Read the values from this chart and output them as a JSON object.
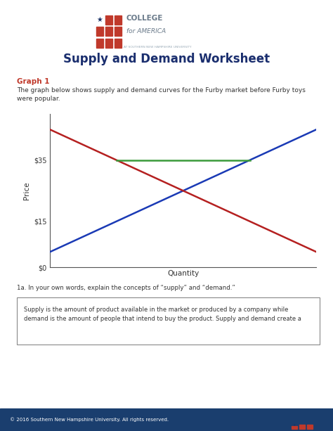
{
  "title": "Supply and Demand Worksheet",
  "graph_heading": "Graph 1",
  "description": "The graph below shows supply and demand curves for the Furby market before Furby toys\nwere popular.",
  "yticks": [
    "$0",
    "$15",
    "$35"
  ],
  "ytick_vals": [
    0,
    15,
    35
  ],
  "ylabel": "Price",
  "xlabel": "Quantity",
  "supply_color": "#1a3ab5",
  "demand_color": "#b52020",
  "horizontal_color": "#3a9a3a",
  "question_label": "1a. In your own words, explain the concepts of “supply” and “demand.”",
  "answer_text": "Supply is the amount of product available in the market or produced by a company while\ndemand is the amount of people that intend to buy the product. Supply and demand create a",
  "footer_text": "© 2016 Southern New Hampshire University. All rights reserved.",
  "footer_bg": "#1a3e6e",
  "footer_text_color": "#ffffff",
  "page_bg": "#ffffff",
  "title_color": "#1a2e6e",
  "graph_heading_color": "#c0392b",
  "logo_red": "#c0392b",
  "logo_blue": "#1a3266",
  "logo_gray": "#6a7a8a",
  "logo_light_gray": "#9aabb8"
}
